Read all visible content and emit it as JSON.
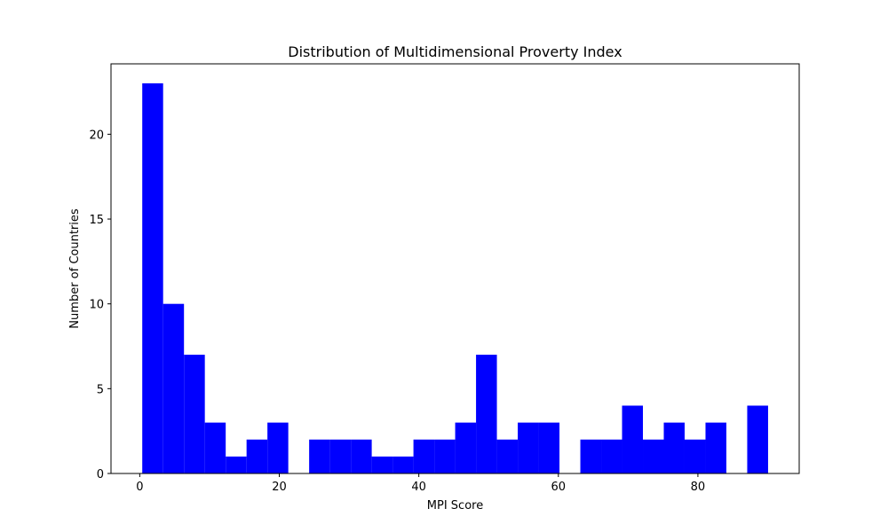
{
  "chart_data": {
    "type": "bar",
    "title": "Distribution of Multidimensional Proverty Index",
    "xlabel": "MPI Score",
    "ylabel": "Number of Countries",
    "xlim": [
      -4.12,
      94.52
    ],
    "ylim": [
      0,
      24.15
    ],
    "xticks": [
      0,
      20,
      40,
      60,
      80
    ],
    "yticks": [
      0,
      5,
      10,
      15,
      20
    ],
    "bar_color": "#0000ff",
    "grid": false,
    "bins": [
      {
        "x0": 0.36,
        "x1": 3.35,
        "count": 23
      },
      {
        "x0": 3.35,
        "x1": 6.34,
        "count": 10
      },
      {
        "x0": 6.34,
        "x1": 9.33,
        "count": 7
      },
      {
        "x0": 9.33,
        "x1": 12.32,
        "count": 3
      },
      {
        "x0": 12.32,
        "x1": 15.31,
        "count": 1
      },
      {
        "x0": 15.31,
        "x1": 18.3,
        "count": 2
      },
      {
        "x0": 18.3,
        "x1": 21.29,
        "count": 3
      },
      {
        "x0": 21.29,
        "x1": 24.28,
        "count": 0
      },
      {
        "x0": 24.28,
        "x1": 27.27,
        "count": 2
      },
      {
        "x0": 27.27,
        "x1": 30.26,
        "count": 2
      },
      {
        "x0": 30.26,
        "x1": 33.25,
        "count": 2
      },
      {
        "x0": 33.25,
        "x1": 36.24,
        "count": 1
      },
      {
        "x0": 36.24,
        "x1": 39.23,
        "count": 1
      },
      {
        "x0": 39.23,
        "x1": 42.22,
        "count": 2
      },
      {
        "x0": 42.22,
        "x1": 45.21,
        "count": 2
      },
      {
        "x0": 45.21,
        "x1": 48.2,
        "count": 3
      },
      {
        "x0": 48.2,
        "x1": 51.19,
        "count": 7
      },
      {
        "x0": 51.19,
        "x1": 54.18,
        "count": 2
      },
      {
        "x0": 54.18,
        "x1": 57.17,
        "count": 3
      },
      {
        "x0": 57.17,
        "x1": 60.16,
        "count": 3
      },
      {
        "x0": 60.16,
        "x1": 63.15,
        "count": 0
      },
      {
        "x0": 63.15,
        "x1": 66.14,
        "count": 2
      },
      {
        "x0": 66.14,
        "x1": 69.13,
        "count": 2
      },
      {
        "x0": 69.13,
        "x1": 72.12,
        "count": 4
      },
      {
        "x0": 72.12,
        "x1": 75.11,
        "count": 2
      },
      {
        "x0": 75.11,
        "x1": 78.1,
        "count": 3
      },
      {
        "x0": 78.1,
        "x1": 81.09,
        "count": 2
      },
      {
        "x0": 81.09,
        "x1": 84.08,
        "count": 3
      },
      {
        "x0": 84.08,
        "x1": 87.07,
        "count": 0
      },
      {
        "x0": 87.07,
        "x1": 90.06,
        "count": 4
      }
    ]
  }
}
